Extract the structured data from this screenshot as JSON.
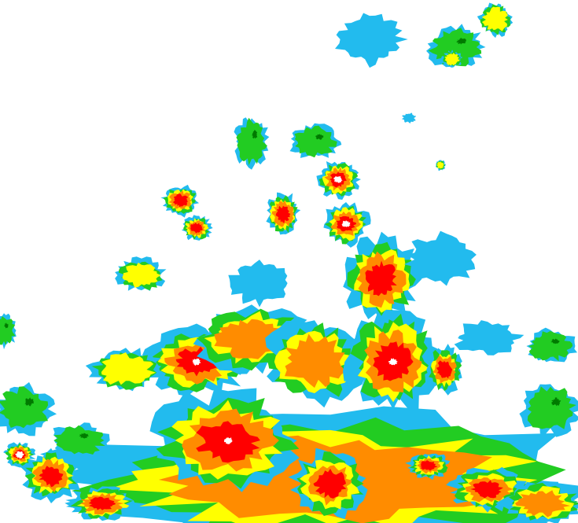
{
  "map": {
    "type": "weather-radar-reflectivity",
    "background": "#ffffff",
    "palette": {
      "light_blue": "#99e0ff",
      "cyan": "#22bbee",
      "dark_green": "#007a00",
      "green": "#22cc22",
      "yellow": "#ffff00",
      "orange": "#ff8c00",
      "red": "#ff0000",
      "core": "#ffffff"
    }
  }
}
